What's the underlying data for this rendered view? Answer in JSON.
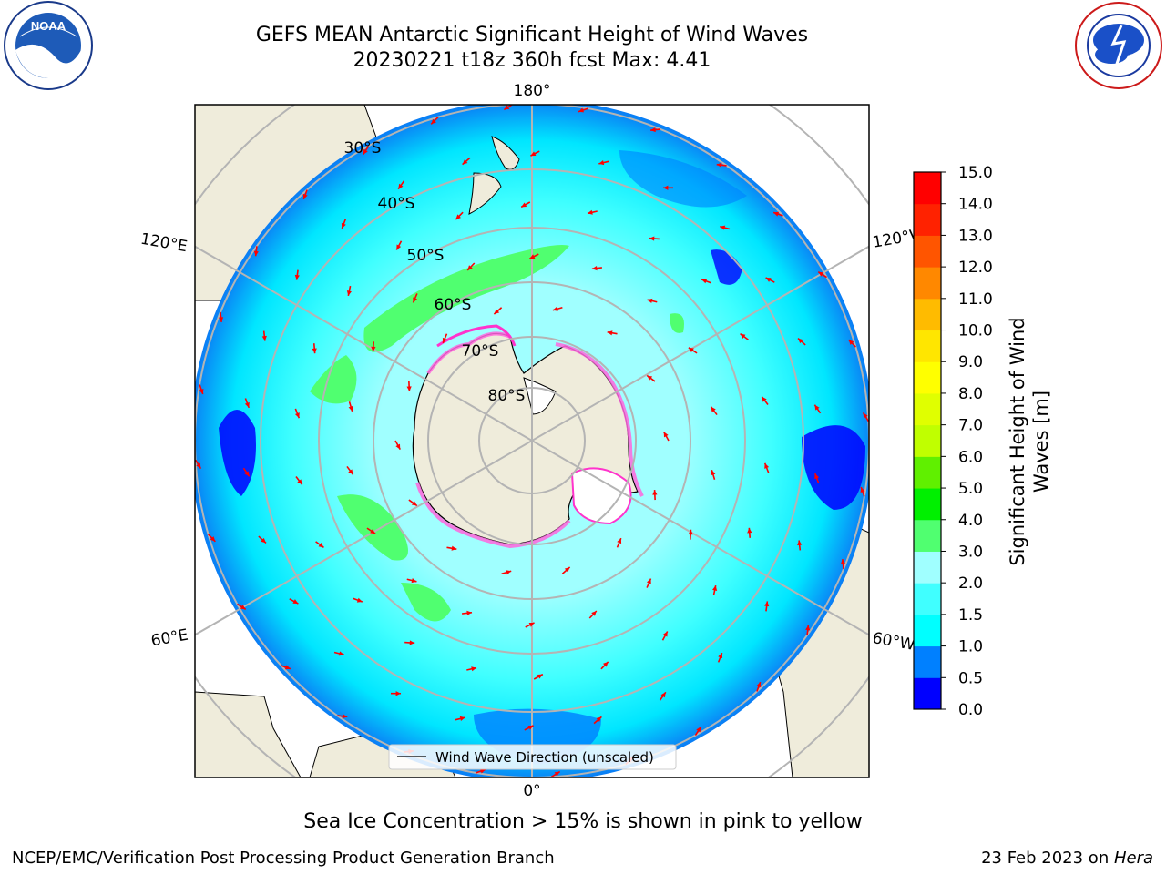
{
  "header": {
    "title_line1": "GEFS MEAN Antarctic Significant Height of Wind Waves",
    "title_line2": "20230221 t18z 360h fcst   Max: 4.41"
  },
  "logos": {
    "noaa": {
      "text": "NOAA",
      "ring_text": "NATIONAL OCEANIC AND ATMOSPHERIC ADMINISTRATION · U.S. DEPARTMENT OF COMMERCE ·"
    },
    "nws": {
      "ring_text": "NATIONAL WEATHER SERVICE"
    }
  },
  "map": {
    "projection": "south-polar-stereographic",
    "longitude_labels": {
      "top": "180°",
      "bottom": "0°",
      "left_upper": "120°E",
      "left_lower": "60°E",
      "right_upper": "120°W",
      "right_lower": "60°W"
    },
    "latitude_labels": [
      "30°S",
      "40°S",
      "50°S",
      "60°S",
      "70°S",
      "80°S"
    ],
    "legend_label": "Wind Wave Direction (unscaled)",
    "arrow_color": "#ff0000",
    "land_color": "#efecdb",
    "ocean_fill_note": ""
  },
  "colorbar": {
    "label": "Significant Height of Wind Waves [m]",
    "label_line1": "Significant Height of Wind",
    "label_line2": "Waves [m]",
    "ticks": [
      "0.0",
      "0.5",
      "1.0",
      "1.5",
      "2.0",
      "3.0",
      "4.0",
      "5.0",
      "6.0",
      "7.0",
      "8.0",
      "9.0",
      "10.0",
      "11.0",
      "12.0",
      "13.0",
      "14.0",
      "15.0"
    ],
    "colors": [
      "#0000ff",
      "#0080ff",
      "#00ffff",
      "#40ffff",
      "#a0ffff",
      "#50ff70",
      "#00f000",
      "#60f000",
      "#c0ff00",
      "#e0ff00",
      "#ffff00",
      "#ffe600",
      "#ffbb00",
      "#ff8800",
      "#ff5500",
      "#ff2200",
      "#ff0000"
    ]
  },
  "footer": {
    "sea_ice_note": "Sea Ice Concentration > 15% is shown in pink to yellow",
    "branch": "NCEP/EMC/Verification Post Processing Product Generation Branch",
    "date_prefix": "23 Feb 2023 on ",
    "machine": "Hera"
  }
}
